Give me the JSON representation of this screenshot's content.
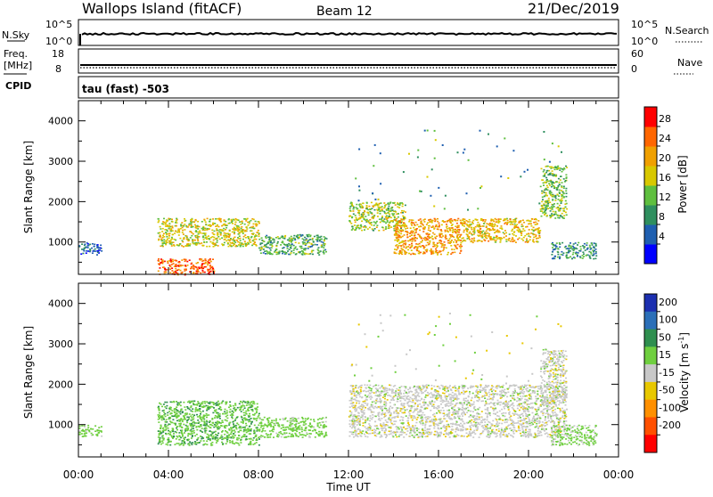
{
  "header": {
    "station": "Wallops Island (fitACF)",
    "beam": "Beam 12",
    "date": "21/Dec/2019"
  },
  "status_panels": {
    "noise": {
      "left_label": "N.Sky",
      "right_label": "N.Search",
      "left_ticks": [
        "10^5",
        "10^0"
      ],
      "right_ticks": [
        "10^5",
        "10^0"
      ]
    },
    "freq": {
      "left_label_1": "Freq.",
      "left_label_2": "[MHz]",
      "left_ticks": [
        "18",
        "8"
      ],
      "right_label": "Nave",
      "right_ticks": [
        "60",
        "0"
      ]
    },
    "cpid": {
      "label": "CPID",
      "text": "tau (fast) -503"
    }
  },
  "time_axis": {
    "ticks": [
      "00:00",
      "04:00",
      "08:00",
      "12:00",
      "16:00",
      "20:00",
      "00:00"
    ],
    "label": "Time UT"
  },
  "power_colorbar": {
    "label": "Power [dB]",
    "ticks": [
      "28",
      "24",
      "20",
      "16",
      "12",
      "8",
      "4"
    ],
    "colors": [
      "#0000ff",
      "#1f5fb0",
      "#2f8f5f",
      "#5fbf3f",
      "#d8c800",
      "#f0a000",
      "#ff6600",
      "#ff0000"
    ]
  },
  "velocity_colorbar": {
    "label": "Velocity [m s^-1]",
    "ticks": [
      "200",
      "100",
      "50",
      "15",
      "-15",
      "-50",
      "-100",
      "-200"
    ],
    "colors": [
      "#1c2fb0",
      "#2b6fb8",
      "#2f8f4f",
      "#6fcf3f",
      "#c8c8c8",
      "#e8c800",
      "#ff9000",
      "#ff5000",
      "#ff0000"
    ]
  },
  "chart_data": [
    {
      "type": "heatmap",
      "title": "",
      "xlabel": "Time UT",
      "ylabel": "Slant Range [km]",
      "xlim": [
        "00:00",
        "00:00"
      ],
      "ylim": [
        200,
        4500
      ],
      "y_ticks": [
        1000,
        2000,
        3000,
        4000
      ],
      "colorbar": "Power [dB]",
      "regions": [
        {
          "time": "00:00-01:00",
          "range_km": [
            700,
            1000
          ],
          "power_db": 6
        },
        {
          "time": "03:30-06:00",
          "range_km": [
            200,
            600
          ],
          "power_db": 26
        },
        {
          "time": "03:30-08:00",
          "range_km": [
            900,
            1600
          ],
          "power_db": 18
        },
        {
          "time": "08:00-11:00",
          "range_km": [
            700,
            1200
          ],
          "power_db": 12
        },
        {
          "time": "12:00-14:30",
          "range_km": [
            1300,
            2000
          ],
          "power_db": 16
        },
        {
          "time": "14:00-17:00",
          "range_km": [
            700,
            1600
          ],
          "power_db": 22
        },
        {
          "time": "17:00-20:30",
          "range_km": [
            1000,
            1600
          ],
          "power_db": 20
        },
        {
          "time": "20:30-21:40",
          "range_km": [
            1600,
            2900
          ],
          "power_db": 14
        },
        {
          "time": "21:00-23:00",
          "range_km": [
            600,
            1000
          ],
          "power_db": 10
        }
      ]
    },
    {
      "type": "heatmap",
      "title": "",
      "xlabel": "Time UT",
      "ylabel": "Slant Range [km]",
      "xlim": [
        "00:00",
        "00:00"
      ],
      "ylim": [
        200,
        4500
      ],
      "y_ticks": [
        1000,
        2000,
        3000,
        4000
      ],
      "colorbar": "Velocity [m s^-1]",
      "regions": [
        {
          "time": "00:00-01:00",
          "range_km": [
            700,
            1000
          ],
          "velocity_ms": 30
        },
        {
          "time": "03:30-08:00",
          "range_km": [
            500,
            1600
          ],
          "velocity_ms": 40
        },
        {
          "time": "08:00-11:00",
          "range_km": [
            700,
            1200
          ],
          "velocity_ms": 30
        },
        {
          "time": "12:00-21:40",
          "range_km": [
            700,
            2000
          ],
          "velocity_ms": 0
        },
        {
          "time": "20:30-21:40",
          "range_km": [
            1500,
            2900
          ],
          "velocity_ms": 0
        },
        {
          "time": "21:00-23:00",
          "range_km": [
            500,
            1000
          ],
          "velocity_ms": 25
        }
      ]
    }
  ]
}
